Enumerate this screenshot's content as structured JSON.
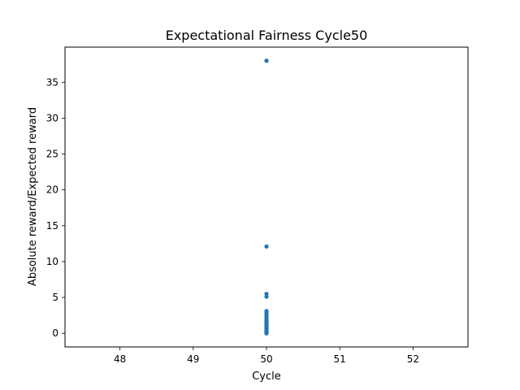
{
  "chart_data": {
    "type": "scatter",
    "title": "Expectational Fairness Cycle50",
    "xlabel": "Cycle",
    "ylabel": "Absolute reward/Expected reward",
    "xlim": [
      47.25,
      52.75
    ],
    "ylim": [
      -1.9,
      39.9
    ],
    "xticks": [
      48,
      49,
      50,
      51,
      52
    ],
    "yticks": [
      0,
      5,
      10,
      15,
      20,
      25,
      30,
      35
    ],
    "grid": false,
    "color": "#1f77b4",
    "series": [
      {
        "x": [
          50,
          50,
          50,
          50,
          50,
          50,
          50,
          50,
          50,
          50,
          50,
          50,
          50,
          50,
          50,
          50,
          50,
          50,
          50,
          50,
          50,
          50,
          50,
          50,
          50,
          50,
          50
        ],
        "y": [
          38.0,
          12.1,
          5.5,
          5.1,
          3.1,
          2.9,
          2.6,
          2.3,
          2.0,
          1.8,
          1.6,
          1.4,
          1.3,
          1.15,
          1.0,
          0.9,
          0.8,
          0.7,
          0.6,
          0.5,
          0.4,
          0.3,
          0.25,
          0.2,
          0.1,
          0.05,
          0.0
        ]
      }
    ]
  }
}
